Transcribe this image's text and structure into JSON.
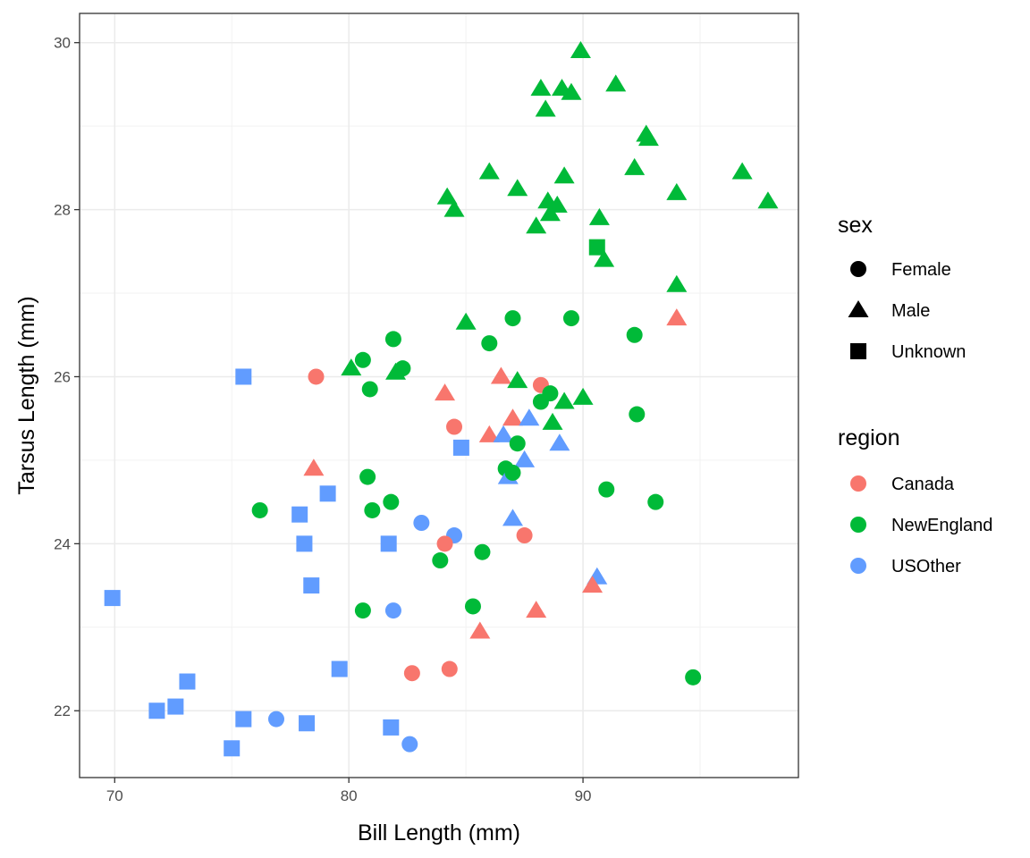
{
  "chart_data": {
    "type": "scatter",
    "xlabel": "Bill Length (mm)",
    "ylabel": "Tarsus Length (mm)",
    "xlim": [
      68.5,
      99.2
    ],
    "ylim": [
      21.2,
      30.35
    ],
    "x_ticks": [
      70,
      80,
      90
    ],
    "y_ticks": [
      22,
      24,
      26,
      28,
      30
    ],
    "x_tick_labels": [
      "70",
      "80",
      "90"
    ],
    "y_tick_labels": [
      "22",
      "24",
      "26",
      "28",
      "30"
    ],
    "grid": true,
    "theme": "bw",
    "legend_position": "right",
    "legends": [
      {
        "title": "sex",
        "entries": [
          {
            "label": "Female",
            "shape": "circle"
          },
          {
            "label": "Male",
            "shape": "triangle"
          },
          {
            "label": "Unknown",
            "shape": "square"
          }
        ]
      },
      {
        "title": "region",
        "entries": [
          {
            "label": "Canada",
            "color": "#F8766D"
          },
          {
            "label": "NewEngland",
            "color": "#00BA38"
          },
          {
            "label": "USOther",
            "color": "#619CFF"
          }
        ]
      }
    ],
    "colors": {
      "Canada": "#F8766D",
      "NewEngland": "#00BA38",
      "USOther": "#619CFF"
    },
    "shapes": {
      "Female": "circle",
      "Male": "triangle",
      "Unknown": "square"
    },
    "points": [
      {
        "x": 89.9,
        "y": 29.9,
        "sex": "Male",
        "region": "NewEngland"
      },
      {
        "x": 88.2,
        "y": 29.45,
        "sex": "Male",
        "region": "NewEngland"
      },
      {
        "x": 89.1,
        "y": 29.45,
        "sex": "Male",
        "region": "NewEngland"
      },
      {
        "x": 89.5,
        "y": 29.4,
        "sex": "Male",
        "region": "NewEngland"
      },
      {
        "x": 91.4,
        "y": 29.5,
        "sex": "Male",
        "region": "NewEngland"
      },
      {
        "x": 88.4,
        "y": 29.2,
        "sex": "Male",
        "region": "NewEngland"
      },
      {
        "x": 92.7,
        "y": 28.9,
        "sex": "Male",
        "region": "NewEngland"
      },
      {
        "x": 92.8,
        "y": 28.85,
        "sex": "Male",
        "region": "NewEngland"
      },
      {
        "x": 86.0,
        "y": 28.45,
        "sex": "Male",
        "region": "NewEngland"
      },
      {
        "x": 92.2,
        "y": 28.5,
        "sex": "Male",
        "region": "NewEngland"
      },
      {
        "x": 96.8,
        "y": 28.45,
        "sex": "Male",
        "region": "NewEngland"
      },
      {
        "x": 89.2,
        "y": 28.4,
        "sex": "Male",
        "region": "NewEngland"
      },
      {
        "x": 87.2,
        "y": 28.25,
        "sex": "Male",
        "region": "NewEngland"
      },
      {
        "x": 94.0,
        "y": 28.2,
        "sex": "Male",
        "region": "NewEngland"
      },
      {
        "x": 84.2,
        "y": 28.15,
        "sex": "Male",
        "region": "NewEngland"
      },
      {
        "x": 88.5,
        "y": 28.1,
        "sex": "Male",
        "region": "NewEngland"
      },
      {
        "x": 97.9,
        "y": 28.1,
        "sex": "Male",
        "region": "NewEngland"
      },
      {
        "x": 88.9,
        "y": 28.05,
        "sex": "Male",
        "region": "NewEngland"
      },
      {
        "x": 84.5,
        "y": 28.0,
        "sex": "Male",
        "region": "NewEngland"
      },
      {
        "x": 88.6,
        "y": 27.95,
        "sex": "Male",
        "region": "NewEngland"
      },
      {
        "x": 90.7,
        "y": 27.9,
        "sex": "Male",
        "region": "NewEngland"
      },
      {
        "x": 88.0,
        "y": 27.8,
        "sex": "Male",
        "region": "NewEngland"
      },
      {
        "x": 90.6,
        "y": 27.55,
        "sex": "Unknown",
        "region": "NewEngland"
      },
      {
        "x": 90.9,
        "y": 27.4,
        "sex": "Male",
        "region": "NewEngland"
      },
      {
        "x": 94.0,
        "y": 27.1,
        "sex": "Male",
        "region": "NewEngland"
      },
      {
        "x": 94.0,
        "y": 26.7,
        "sex": "Male",
        "region": "Canada"
      },
      {
        "x": 85.0,
        "y": 26.65,
        "sex": "Male",
        "region": "NewEngland"
      },
      {
        "x": 87.0,
        "y": 26.7,
        "sex": "Female",
        "region": "NewEngland"
      },
      {
        "x": 89.5,
        "y": 26.7,
        "sex": "Female",
        "region": "NewEngland"
      },
      {
        "x": 92.2,
        "y": 26.5,
        "sex": "Female",
        "region": "NewEngland"
      },
      {
        "x": 81.9,
        "y": 26.45,
        "sex": "Female",
        "region": "NewEngland"
      },
      {
        "x": 86.0,
        "y": 26.4,
        "sex": "Female",
        "region": "NewEngland"
      },
      {
        "x": 80.6,
        "y": 26.2,
        "sex": "Female",
        "region": "NewEngland"
      },
      {
        "x": 80.1,
        "y": 26.1,
        "sex": "Male",
        "region": "NewEngland"
      },
      {
        "x": 82.0,
        "y": 26.05,
        "sex": "Male",
        "region": "NewEngland"
      },
      {
        "x": 82.3,
        "y": 26.1,
        "sex": "Female",
        "region": "NewEngland"
      },
      {
        "x": 75.5,
        "y": 26.0,
        "sex": "Unknown",
        "region": "USOther"
      },
      {
        "x": 78.6,
        "y": 26.0,
        "sex": "Female",
        "region": "Canada"
      },
      {
        "x": 86.5,
        "y": 26.0,
        "sex": "Male",
        "region": "Canada"
      },
      {
        "x": 87.2,
        "y": 25.95,
        "sex": "Male",
        "region": "NewEngland"
      },
      {
        "x": 88.2,
        "y": 25.9,
        "sex": "Female",
        "region": "Canada"
      },
      {
        "x": 80.9,
        "y": 25.85,
        "sex": "Female",
        "region": "NewEngland"
      },
      {
        "x": 84.1,
        "y": 25.8,
        "sex": "Male",
        "region": "Canada"
      },
      {
        "x": 88.6,
        "y": 25.8,
        "sex": "Female",
        "region": "NewEngland"
      },
      {
        "x": 90.0,
        "y": 25.75,
        "sex": "Male",
        "region": "NewEngland"
      },
      {
        "x": 89.2,
        "y": 25.7,
        "sex": "Male",
        "region": "NewEngland"
      },
      {
        "x": 88.2,
        "y": 25.7,
        "sex": "Female",
        "region": "NewEngland"
      },
      {
        "x": 87.0,
        "y": 25.5,
        "sex": "Male",
        "region": "Canada"
      },
      {
        "x": 87.7,
        "y": 25.5,
        "sex": "Male",
        "region": "USOther"
      },
      {
        "x": 92.3,
        "y": 25.55,
        "sex": "Female",
        "region": "NewEngland"
      },
      {
        "x": 88.7,
        "y": 25.45,
        "sex": "Male",
        "region": "NewEngland"
      },
      {
        "x": 84.5,
        "y": 25.4,
        "sex": "Female",
        "region": "Canada"
      },
      {
        "x": 86.0,
        "y": 25.3,
        "sex": "Male",
        "region": "Canada"
      },
      {
        "x": 86.6,
        "y": 25.3,
        "sex": "Male",
        "region": "USOther"
      },
      {
        "x": 89.0,
        "y": 25.2,
        "sex": "Male",
        "region": "USOther"
      },
      {
        "x": 87.2,
        "y": 25.2,
        "sex": "Female",
        "region": "NewEngland"
      },
      {
        "x": 84.8,
        "y": 25.15,
        "sex": "Unknown",
        "region": "USOther"
      },
      {
        "x": 87.5,
        "y": 25.0,
        "sex": "Male",
        "region": "USOther"
      },
      {
        "x": 78.5,
        "y": 24.9,
        "sex": "Male",
        "region": "Canada"
      },
      {
        "x": 86.7,
        "y": 24.9,
        "sex": "Female",
        "region": "NewEngland"
      },
      {
        "x": 86.8,
        "y": 24.8,
        "sex": "Male",
        "region": "USOther"
      },
      {
        "x": 87.0,
        "y": 24.85,
        "sex": "Female",
        "region": "NewEngland"
      },
      {
        "x": 80.8,
        "y": 24.8,
        "sex": "Female",
        "region": "NewEngland"
      },
      {
        "x": 91.0,
        "y": 24.65,
        "sex": "Female",
        "region": "NewEngland"
      },
      {
        "x": 79.1,
        "y": 24.6,
        "sex": "Unknown",
        "region": "USOther"
      },
      {
        "x": 81.8,
        "y": 24.5,
        "sex": "Female",
        "region": "NewEngland"
      },
      {
        "x": 93.1,
        "y": 24.5,
        "sex": "Female",
        "region": "NewEngland"
      },
      {
        "x": 76.2,
        "y": 24.4,
        "sex": "Female",
        "region": "NewEngland"
      },
      {
        "x": 81.0,
        "y": 24.4,
        "sex": "Female",
        "region": "NewEngland"
      },
      {
        "x": 77.9,
        "y": 24.35,
        "sex": "Unknown",
        "region": "USOther"
      },
      {
        "x": 87.0,
        "y": 24.3,
        "sex": "Male",
        "region": "USOther"
      },
      {
        "x": 83.1,
        "y": 24.25,
        "sex": "Female",
        "region": "USOther"
      },
      {
        "x": 84.5,
        "y": 24.1,
        "sex": "Female",
        "region": "USOther"
      },
      {
        "x": 87.5,
        "y": 24.1,
        "sex": "Female",
        "region": "Canada"
      },
      {
        "x": 84.1,
        "y": 24.0,
        "sex": "Female",
        "region": "Canada"
      },
      {
        "x": 78.1,
        "y": 24.0,
        "sex": "Unknown",
        "region": "USOther"
      },
      {
        "x": 81.7,
        "y": 24.0,
        "sex": "Unknown",
        "region": "USOther"
      },
      {
        "x": 85.7,
        "y": 23.9,
        "sex": "Female",
        "region": "NewEngland"
      },
      {
        "x": 83.9,
        "y": 23.8,
        "sex": "Female",
        "region": "NewEngland"
      },
      {
        "x": 90.6,
        "y": 23.6,
        "sex": "Male",
        "region": "USOther"
      },
      {
        "x": 90.4,
        "y": 23.5,
        "sex": "Male",
        "region": "Canada"
      },
      {
        "x": 78.4,
        "y": 23.5,
        "sex": "Unknown",
        "region": "USOther"
      },
      {
        "x": 69.9,
        "y": 23.35,
        "sex": "Unknown",
        "region": "USOther"
      },
      {
        "x": 85.3,
        "y": 23.25,
        "sex": "Female",
        "region": "NewEngland"
      },
      {
        "x": 80.6,
        "y": 23.2,
        "sex": "Female",
        "region": "NewEngland"
      },
      {
        "x": 81.9,
        "y": 23.2,
        "sex": "Female",
        "region": "USOther"
      },
      {
        "x": 88.0,
        "y": 23.2,
        "sex": "Male",
        "region": "Canada"
      },
      {
        "x": 85.6,
        "y": 22.95,
        "sex": "Male",
        "region": "Canada"
      },
      {
        "x": 79.6,
        "y": 22.5,
        "sex": "Unknown",
        "region": "USOther"
      },
      {
        "x": 84.3,
        "y": 22.5,
        "sex": "Female",
        "region": "Canada"
      },
      {
        "x": 82.7,
        "y": 22.45,
        "sex": "Female",
        "region": "Canada"
      },
      {
        "x": 94.7,
        "y": 22.4,
        "sex": "Female",
        "region": "NewEngland"
      },
      {
        "x": 73.1,
        "y": 22.35,
        "sex": "Unknown",
        "region": "USOther"
      },
      {
        "x": 72.6,
        "y": 22.05,
        "sex": "Unknown",
        "region": "USOther"
      },
      {
        "x": 71.8,
        "y": 22.0,
        "sex": "Unknown",
        "region": "USOther"
      },
      {
        "x": 75.5,
        "y": 21.9,
        "sex": "Unknown",
        "region": "USOther"
      },
      {
        "x": 76.9,
        "y": 21.9,
        "sex": "Female",
        "region": "USOther"
      },
      {
        "x": 78.2,
        "y": 21.85,
        "sex": "Unknown",
        "region": "USOther"
      },
      {
        "x": 81.8,
        "y": 21.8,
        "sex": "Unknown",
        "region": "USOther"
      },
      {
        "x": 75.0,
        "y": 21.55,
        "sex": "Unknown",
        "region": "USOther"
      },
      {
        "x": 82.6,
        "y": 21.6,
        "sex": "Female",
        "region": "USOther"
      }
    ]
  }
}
